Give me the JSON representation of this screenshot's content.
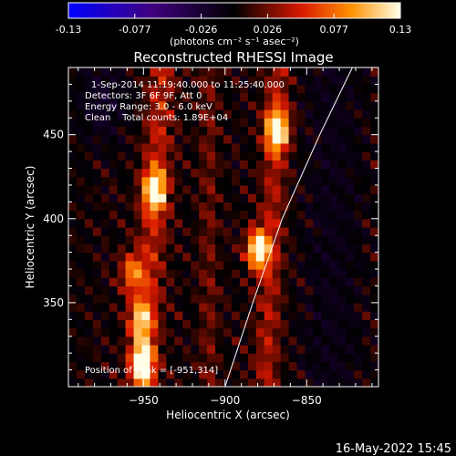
{
  "colorbar": {
    "tick_labels": [
      "-0.13",
      "-0.077",
      "-0.026",
      "0.026",
      "0.077",
      "0.13"
    ],
    "unit_label": "(photons cm⁻² s⁻¹ asec⁻²)",
    "range": [
      -0.13,
      0.13
    ]
  },
  "plot": {
    "title": "Reconstructed RHESSI Image",
    "info_lines": [
      "1-Sep-2014 11:19:40.000 to 11:25:40.000",
      "Detectors: 3F 6F 9F, Att 0",
      "Energy Range: 3.0 - 6.0 keV",
      "Clean    Total counts: 1.89E+04"
    ],
    "peak_label": "Position of Peak = [-951,314]",
    "footer_date": "16-May-2022 15:45"
  },
  "chart_data": {
    "type": "heatmap",
    "title": "Reconstructed RHESSI Image",
    "xlabel": "Heliocentric X (arcsec)",
    "ylabel": "Heliocentric Y (arcsec)",
    "xlim": [
      -996,
      -806
    ],
    "ylim": [
      300,
      490
    ],
    "x_ticks": [
      -950,
      -900,
      -850
    ],
    "y_ticks": [
      350,
      400,
      450
    ],
    "colormap": "hot-with-blue-negative",
    "sources": [
      {
        "x": -951,
        "y": 314,
        "peak": 0.13
      },
      {
        "x": -943,
        "y": 417,
        "peak": 0.12
      },
      {
        "x": -880,
        "y": 382,
        "peak": 0.13
      },
      {
        "x": -868,
        "y": 453,
        "peak": 0.13
      },
      {
        "x": -952,
        "y": 340,
        "peak": 0.09
      },
      {
        "x": -957,
        "y": 368,
        "peak": 0.08
      }
    ],
    "limb_curve": [
      {
        "x": -900,
        "y": 300
      },
      {
        "x": -883,
        "y": 350
      },
      {
        "x": -865,
        "y": 400
      },
      {
        "x": -842,
        "y": 450
      },
      {
        "x": -822,
        "y": 490
      }
    ]
  }
}
